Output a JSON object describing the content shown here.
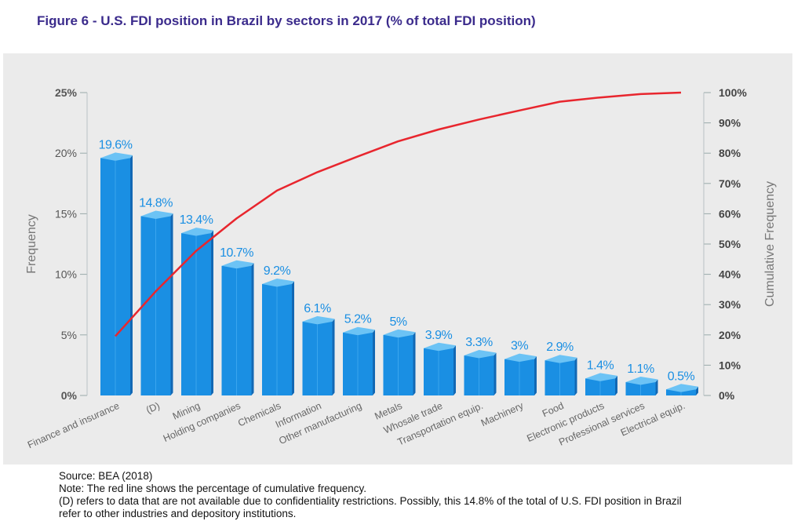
{
  "title": "Figure 6 - U.S. FDI position in Brazil by sectors in 2017 (% of total FDI position)",
  "notes": {
    "source": "Source: BEA (2018)",
    "line_note": "Note: The red line shows the percentage of cumulative frequency.",
    "d_note_1": "(D) refers to data that are not available due to confidentiality restrictions. Possibly, this 14.8% of the total of U.S. FDI position in Brazil",
    "d_note_2": "refer to other industries and depository institutions."
  },
  "colors": {
    "plot_background": "#ebebeb",
    "bar_front": "#1a8fe3",
    "bar_side": "#1268b4",
    "bar_top": "#6cc3f5",
    "label_blue": "#1a8fe3",
    "cumulative_line": "#e8262e",
    "title": "#3b2b8c"
  },
  "chart_data": {
    "type": "bar",
    "title": "Figure 6 - U.S. FDI position in Brazil by sectors in 2017 (% of total FDI position)",
    "xlabel": "",
    "ylabel": "Frequency",
    "y2label": "Cumulative Frequency",
    "ylim": [
      0,
      25
    ],
    "y2lim": [
      0,
      100
    ],
    "yticks": [
      "0%",
      "5%",
      "10%",
      "15%",
      "20%",
      "25%"
    ],
    "y2ticks": [
      "0%",
      "10%",
      "20%",
      "30%",
      "40%",
      "50%",
      "60%",
      "70%",
      "80%",
      "90%",
      "100%"
    ],
    "categories": [
      "Finance and insurance",
      "(D)",
      "Mining",
      "Holding companies",
      "Chemicals",
      "Information",
      "Other manufacturing",
      "Metals",
      "Whosale trade",
      "Transportation equip.",
      "Machinery",
      "Food",
      "Electronic products",
      "Professional services",
      "Electrical equip."
    ],
    "series": [
      {
        "values": [
          19.6,
          14.8,
          13.4,
          10.7,
          9.2,
          6.1,
          5.2,
          5,
          3.9,
          3.3,
          3,
          2.9,
          1.4,
          1.1,
          0.5
        ],
        "labels": [
          "19.6%",
          "14.8%",
          "13.4%",
          "10.7%",
          "9.2%",
          "6.1%",
          "5.2%",
          "5%",
          "3.9%",
          "3.3%",
          "3%",
          "2.9%",
          "1.4%",
          "1.1%",
          "0.5%"
        ]
      }
    ],
    "cumulative_line": "red line, cumulative frequency on the right axis",
    "grid": false,
    "legend": "none"
  }
}
